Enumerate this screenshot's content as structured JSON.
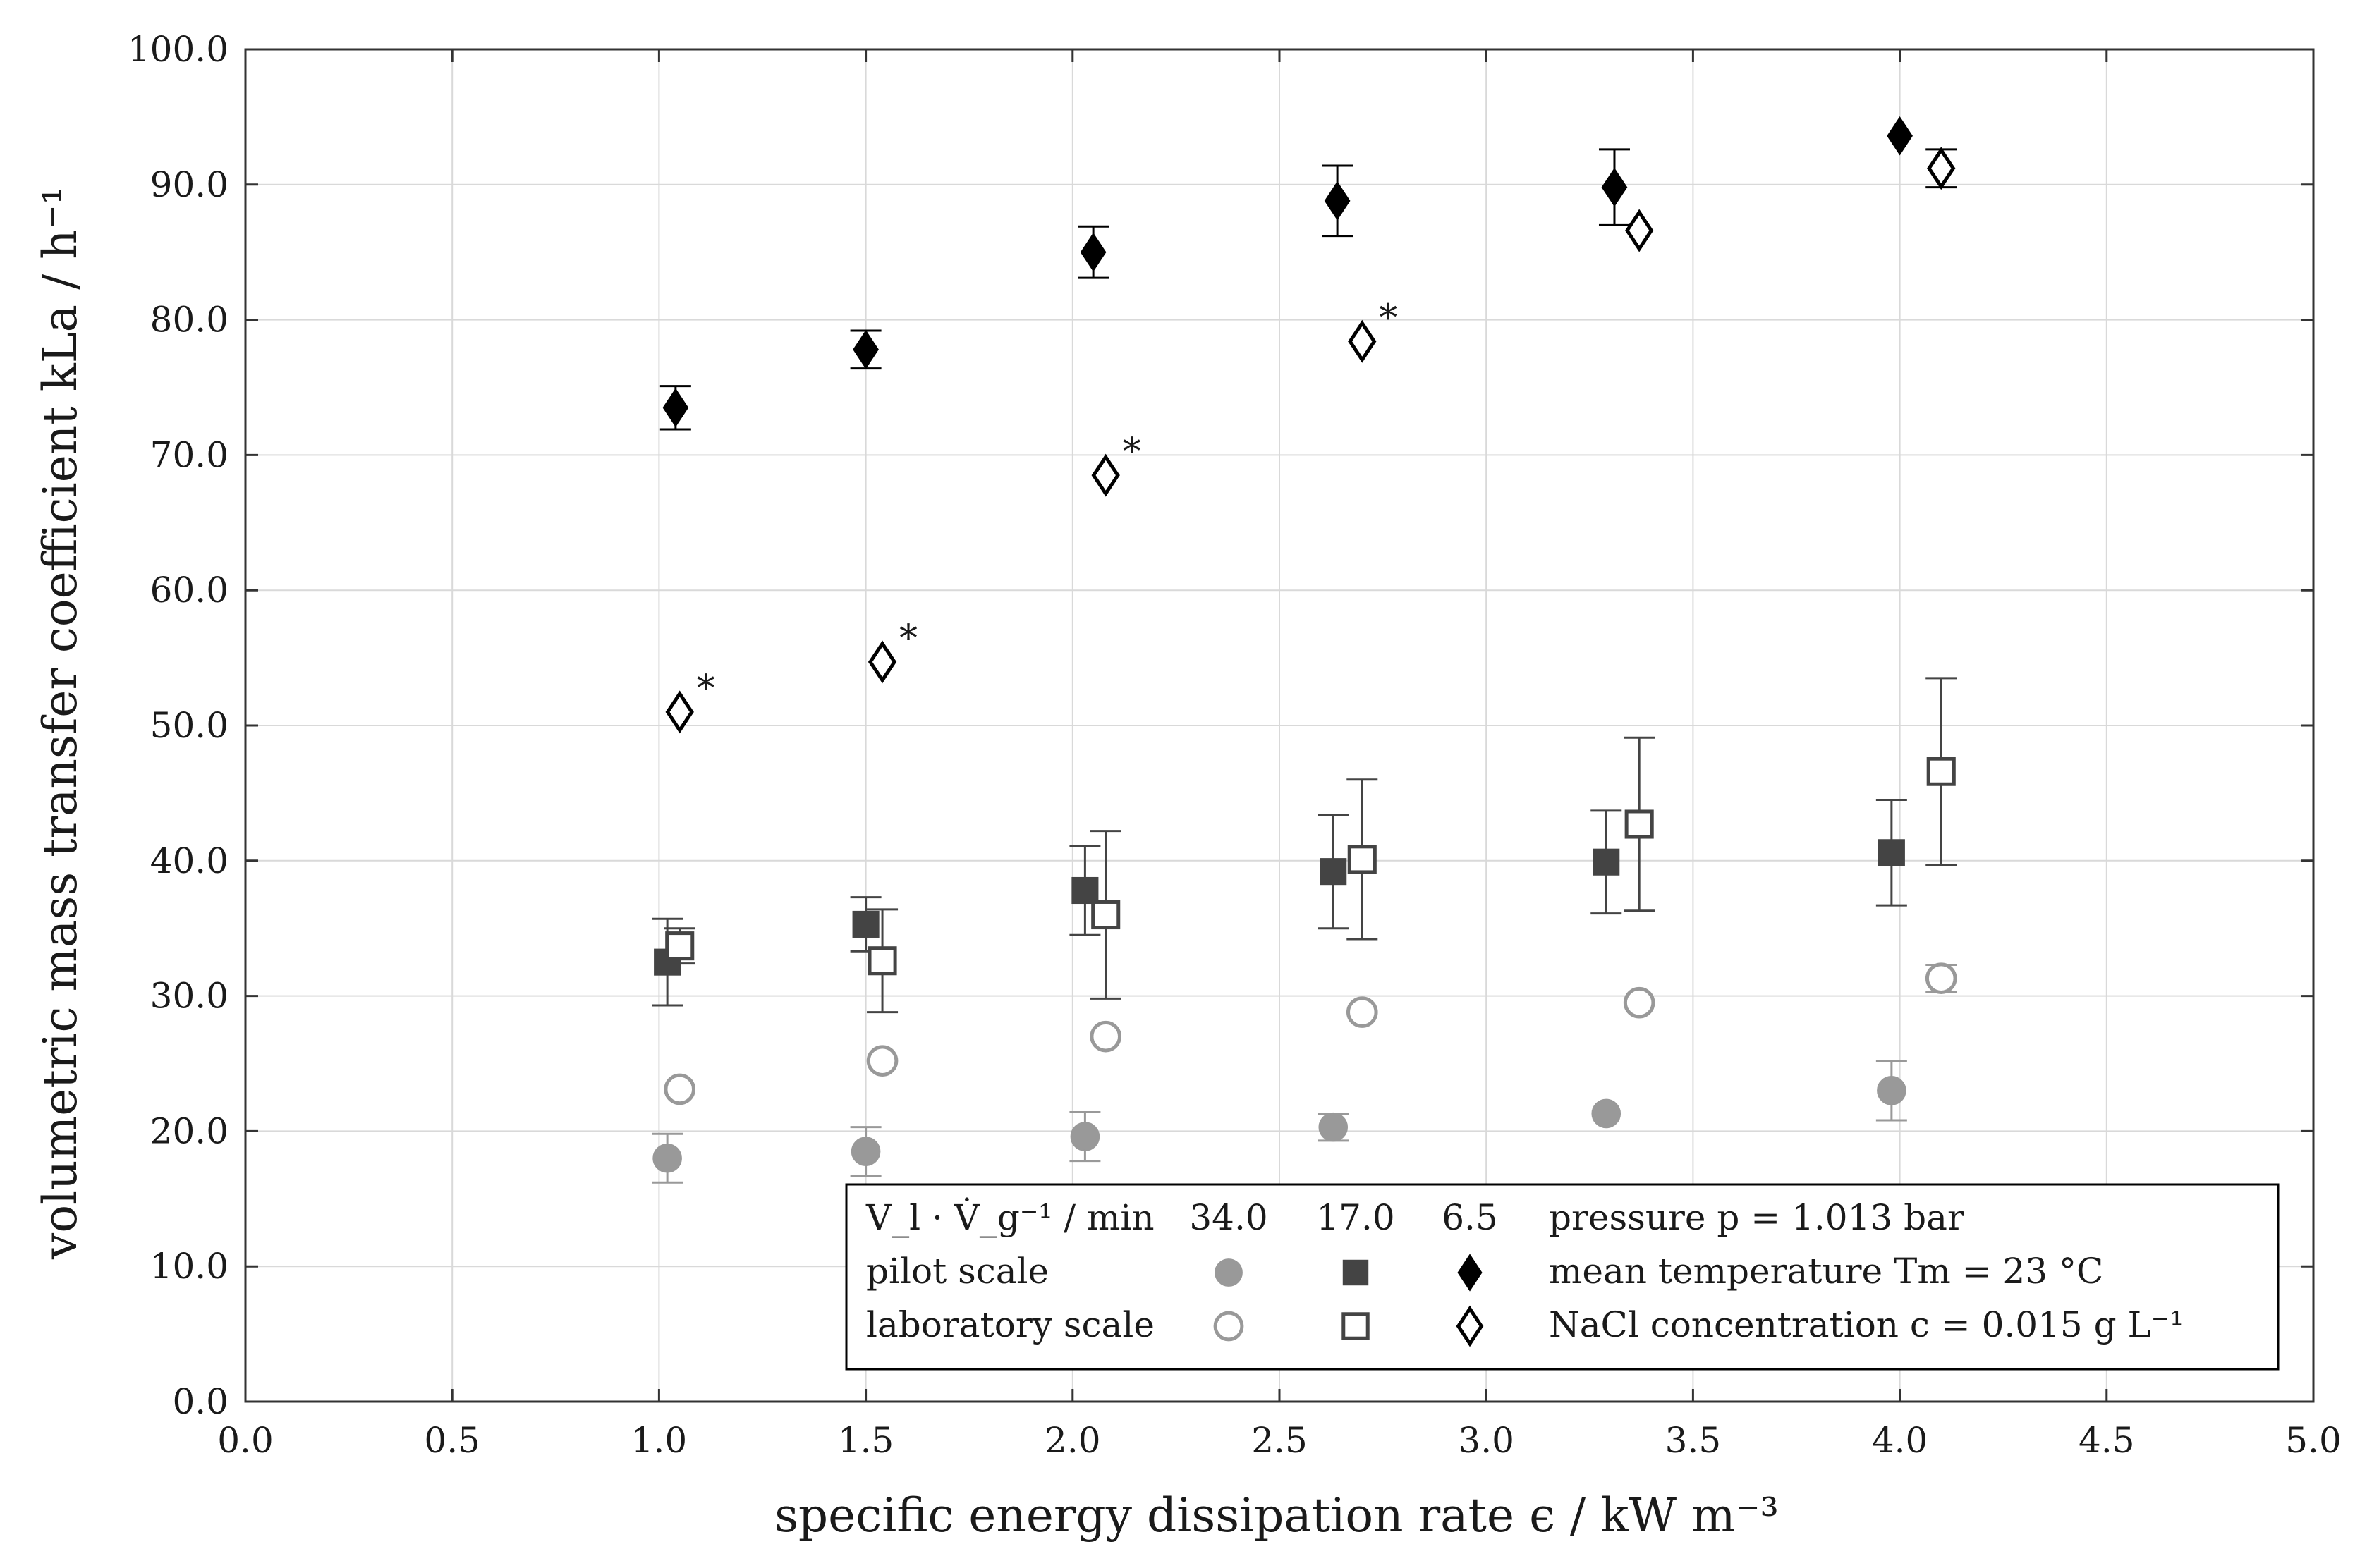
{
  "chart_data": {
    "type": "scatter",
    "title": "",
    "xlabel": "specific energy dissipation rate ϵ / kW m⁻³",
    "ylabel": "volumetric mass transfer coefficient kLa / h⁻¹",
    "xlim": [
      0,
      5
    ],
    "ylim": [
      0,
      100
    ],
    "xticks": [
      "0.0",
      "0.5",
      "1.0",
      "1.5",
      "2.0",
      "2.5",
      "3.0",
      "3.5",
      "4.0",
      "4.5",
      "5.0"
    ],
    "yticks": [
      "0.0",
      "10.0",
      "20.0",
      "30.0",
      "40.0",
      "50.0",
      "60.0",
      "70.0",
      "80.0",
      "90.0",
      "100.0"
    ],
    "grid": true,
    "series": [
      {
        "name": "pilot scale 34.0",
        "marker": "filled-circle",
        "color": "#999999",
        "points": [
          [
            1.02,
            18.0,
            1.8
          ],
          [
            1.5,
            18.5,
            1.8
          ],
          [
            2.03,
            19.6,
            1.8
          ],
          [
            2.63,
            20.3,
            1.0
          ],
          [
            3.29,
            21.3,
            0
          ],
          [
            3.98,
            23.0,
            2.2
          ]
        ]
      },
      {
        "name": "pilot scale 17.0",
        "marker": "filled-square",
        "color": "#444444",
        "points": [
          [
            1.02,
            32.5,
            3.2
          ],
          [
            1.5,
            35.3,
            2.0
          ],
          [
            2.03,
            37.8,
            3.3
          ],
          [
            2.63,
            39.2,
            4.2
          ],
          [
            3.29,
            39.9,
            3.8
          ],
          [
            3.98,
            40.6,
            3.9
          ]
        ]
      },
      {
        "name": "pilot scale 6.5",
        "marker": "filled-diamond",
        "color": "#000000",
        "points": [
          [
            1.04,
            73.5,
            1.6
          ],
          [
            1.5,
            77.8,
            1.4
          ],
          [
            2.05,
            85.0,
            1.9
          ],
          [
            2.64,
            88.8,
            2.6
          ],
          [
            3.31,
            89.8,
            2.8
          ],
          [
            4.0,
            93.6,
            0
          ]
        ]
      },
      {
        "name": "laboratory scale 34.0",
        "marker": "open-circle",
        "color": "#999999",
        "points": [
          [
            1.05,
            23.1,
            0
          ],
          [
            1.54,
            25.2,
            0
          ],
          [
            2.08,
            27.0,
            0
          ],
          [
            2.7,
            28.8,
            0
          ],
          [
            3.37,
            29.5,
            0
          ],
          [
            4.1,
            31.3,
            1.0
          ]
        ]
      },
      {
        "name": "laboratory scale 17.0",
        "marker": "open-square",
        "color": "#444444",
        "points": [
          [
            1.05,
            33.7,
            1.3
          ],
          [
            1.54,
            32.6,
            3.8
          ],
          [
            2.08,
            36.0,
            6.2
          ],
          [
            2.7,
            40.1,
            5.9
          ],
          [
            3.37,
            42.7,
            6.4
          ],
          [
            4.1,
            46.6,
            6.9
          ]
        ]
      },
      {
        "name": "laboratory scale 6.5",
        "marker": "open-diamond",
        "color": "#000000",
        "points": [
          [
            1.05,
            51.0,
            0
          ],
          [
            1.54,
            54.7,
            0
          ],
          [
            2.08,
            68.5,
            0
          ],
          [
            2.7,
            78.4,
            0
          ],
          [
            3.37,
            86.6,
            0
          ],
          [
            4.1,
            91.2,
            1.4
          ]
        ]
      }
    ],
    "annotations": [
      {
        "text": "*",
        "x": 1.05,
        "y": 51.0
      },
      {
        "text": "*",
        "x": 1.54,
        "y": 54.7
      },
      {
        "text": "*",
        "x": 2.08,
        "y": 68.5
      },
      {
        "text": "*",
        "x": 2.7,
        "y": 78.4
      }
    ],
    "legend": {
      "placement": "bottom-right",
      "header_label": "V_l · V̇_g⁻¹ / min",
      "header_values": [
        "34.0",
        "17.0",
        "6.5"
      ],
      "rows": [
        "pilot scale",
        "laboratory scale"
      ],
      "conditions": [
        "pressure p = 1.013 bar",
        "mean temperature Tm = 23 °C",
        "NaCl concentration c = 0.015 g L⁻¹"
      ]
    }
  }
}
